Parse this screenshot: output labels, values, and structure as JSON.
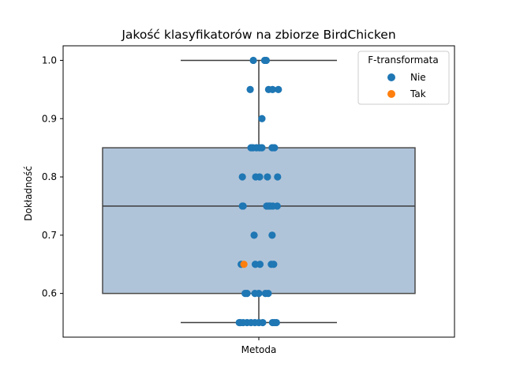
{
  "chart_data": {
    "type": "box",
    "title": "Jakość klasyfikatorów na zbiorze BirdChicken",
    "xlabel": "",
    "ylabel": "Dokładność",
    "categories": [
      "Metoda"
    ],
    "ylim": [
      0.525,
      1.025
    ],
    "yticks": [
      0.6,
      0.7,
      0.8,
      0.9,
      1.0
    ],
    "ytick_labels": [
      "0.6",
      "0.7",
      "0.8",
      "0.9",
      "1.0"
    ],
    "grid": false,
    "legend": {
      "title": "F-transformata",
      "placement": "top-right"
    },
    "box": {
      "whisker_low": 0.55,
      "q1": 0.6,
      "median": 0.75,
      "q3": 0.85,
      "whisker_high": 1.0
    },
    "colors": {
      "box": "#b0c4d9",
      "box_edge": "#4a4a4a",
      "Nie": "#1f77b4",
      "Tak": "#ff7f0e"
    },
    "series": [
      {
        "name": "Nie",
        "points": [
          {
            "x": -0.05,
            "y": 0.55
          },
          {
            "x": -0.03,
            "y": 0.55
          },
          {
            "x": -0.02,
            "y": 0.55
          },
          {
            "x": -0.01,
            "y": 0.55
          },
          {
            "x": -0.047,
            "y": 0.55
          },
          {
            "x": -0.04,
            "y": 0.55
          },
          {
            "x": 0.0,
            "y": 0.55
          },
          {
            "x": 0.01,
            "y": 0.55
          },
          {
            "x": 0.035,
            "y": 0.55
          },
          {
            "x": 0.04,
            "y": 0.55
          },
          {
            "x": 0.045,
            "y": 0.55
          },
          {
            "x": -0.03,
            "y": 0.6
          },
          {
            "x": -0.035,
            "y": 0.6
          },
          {
            "x": -0.01,
            "y": 0.6
          },
          {
            "x": 0.0,
            "y": 0.6
          },
          {
            "x": 0.017,
            "y": 0.6
          },
          {
            "x": 0.024,
            "y": 0.6
          },
          {
            "x": -0.045,
            "y": 0.65
          },
          {
            "x": -0.009,
            "y": 0.65
          },
          {
            "x": 0.003,
            "y": 0.65
          },
          {
            "x": 0.032,
            "y": 0.65
          },
          {
            "x": 0.038,
            "y": 0.65
          },
          {
            "x": -0.012,
            "y": 0.7
          },
          {
            "x": 0.034,
            "y": 0.7
          },
          {
            "x": -0.04,
            "y": 0.75
          },
          {
            "x": -0.042,
            "y": 0.75
          },
          {
            "x": 0.02,
            "y": 0.75
          },
          {
            "x": 0.025,
            "y": 0.75
          },
          {
            "x": 0.028,
            "y": 0.75
          },
          {
            "x": 0.029,
            "y": 0.75
          },
          {
            "x": 0.047,
            "y": 0.75
          },
          {
            "x": 0.036,
            "y": 0.75
          },
          {
            "x": -0.042,
            "y": 0.8
          },
          {
            "x": -0.008,
            "y": 0.8
          },
          {
            "x": 0.002,
            "y": 0.8
          },
          {
            "x": 0.022,
            "y": 0.8
          },
          {
            "x": 0.048,
            "y": 0.8
          },
          {
            "x": -0.02,
            "y": 0.85
          },
          {
            "x": -0.015,
            "y": 0.85
          },
          {
            "x": -0.006,
            "y": 0.85
          },
          {
            "x": 0.002,
            "y": 0.85
          },
          {
            "x": 0.008,
            "y": 0.85
          },
          {
            "x": 0.034,
            "y": 0.85
          },
          {
            "x": 0.04,
            "y": 0.85
          },
          {
            "x": 0.008,
            "y": 0.9
          },
          {
            "x": -0.022,
            "y": 0.95
          },
          {
            "x": 0.025,
            "y": 0.95
          },
          {
            "x": 0.035,
            "y": 0.95
          },
          {
            "x": 0.05,
            "y": 0.95
          },
          {
            "x": -0.014,
            "y": 1.0
          },
          {
            "x": 0.015,
            "y": 1.0
          },
          {
            "x": 0.019,
            "y": 1.0
          }
        ]
      },
      {
        "name": "Tak",
        "points": [
          {
            "x": -0.038,
            "y": 0.65
          }
        ]
      }
    ]
  }
}
